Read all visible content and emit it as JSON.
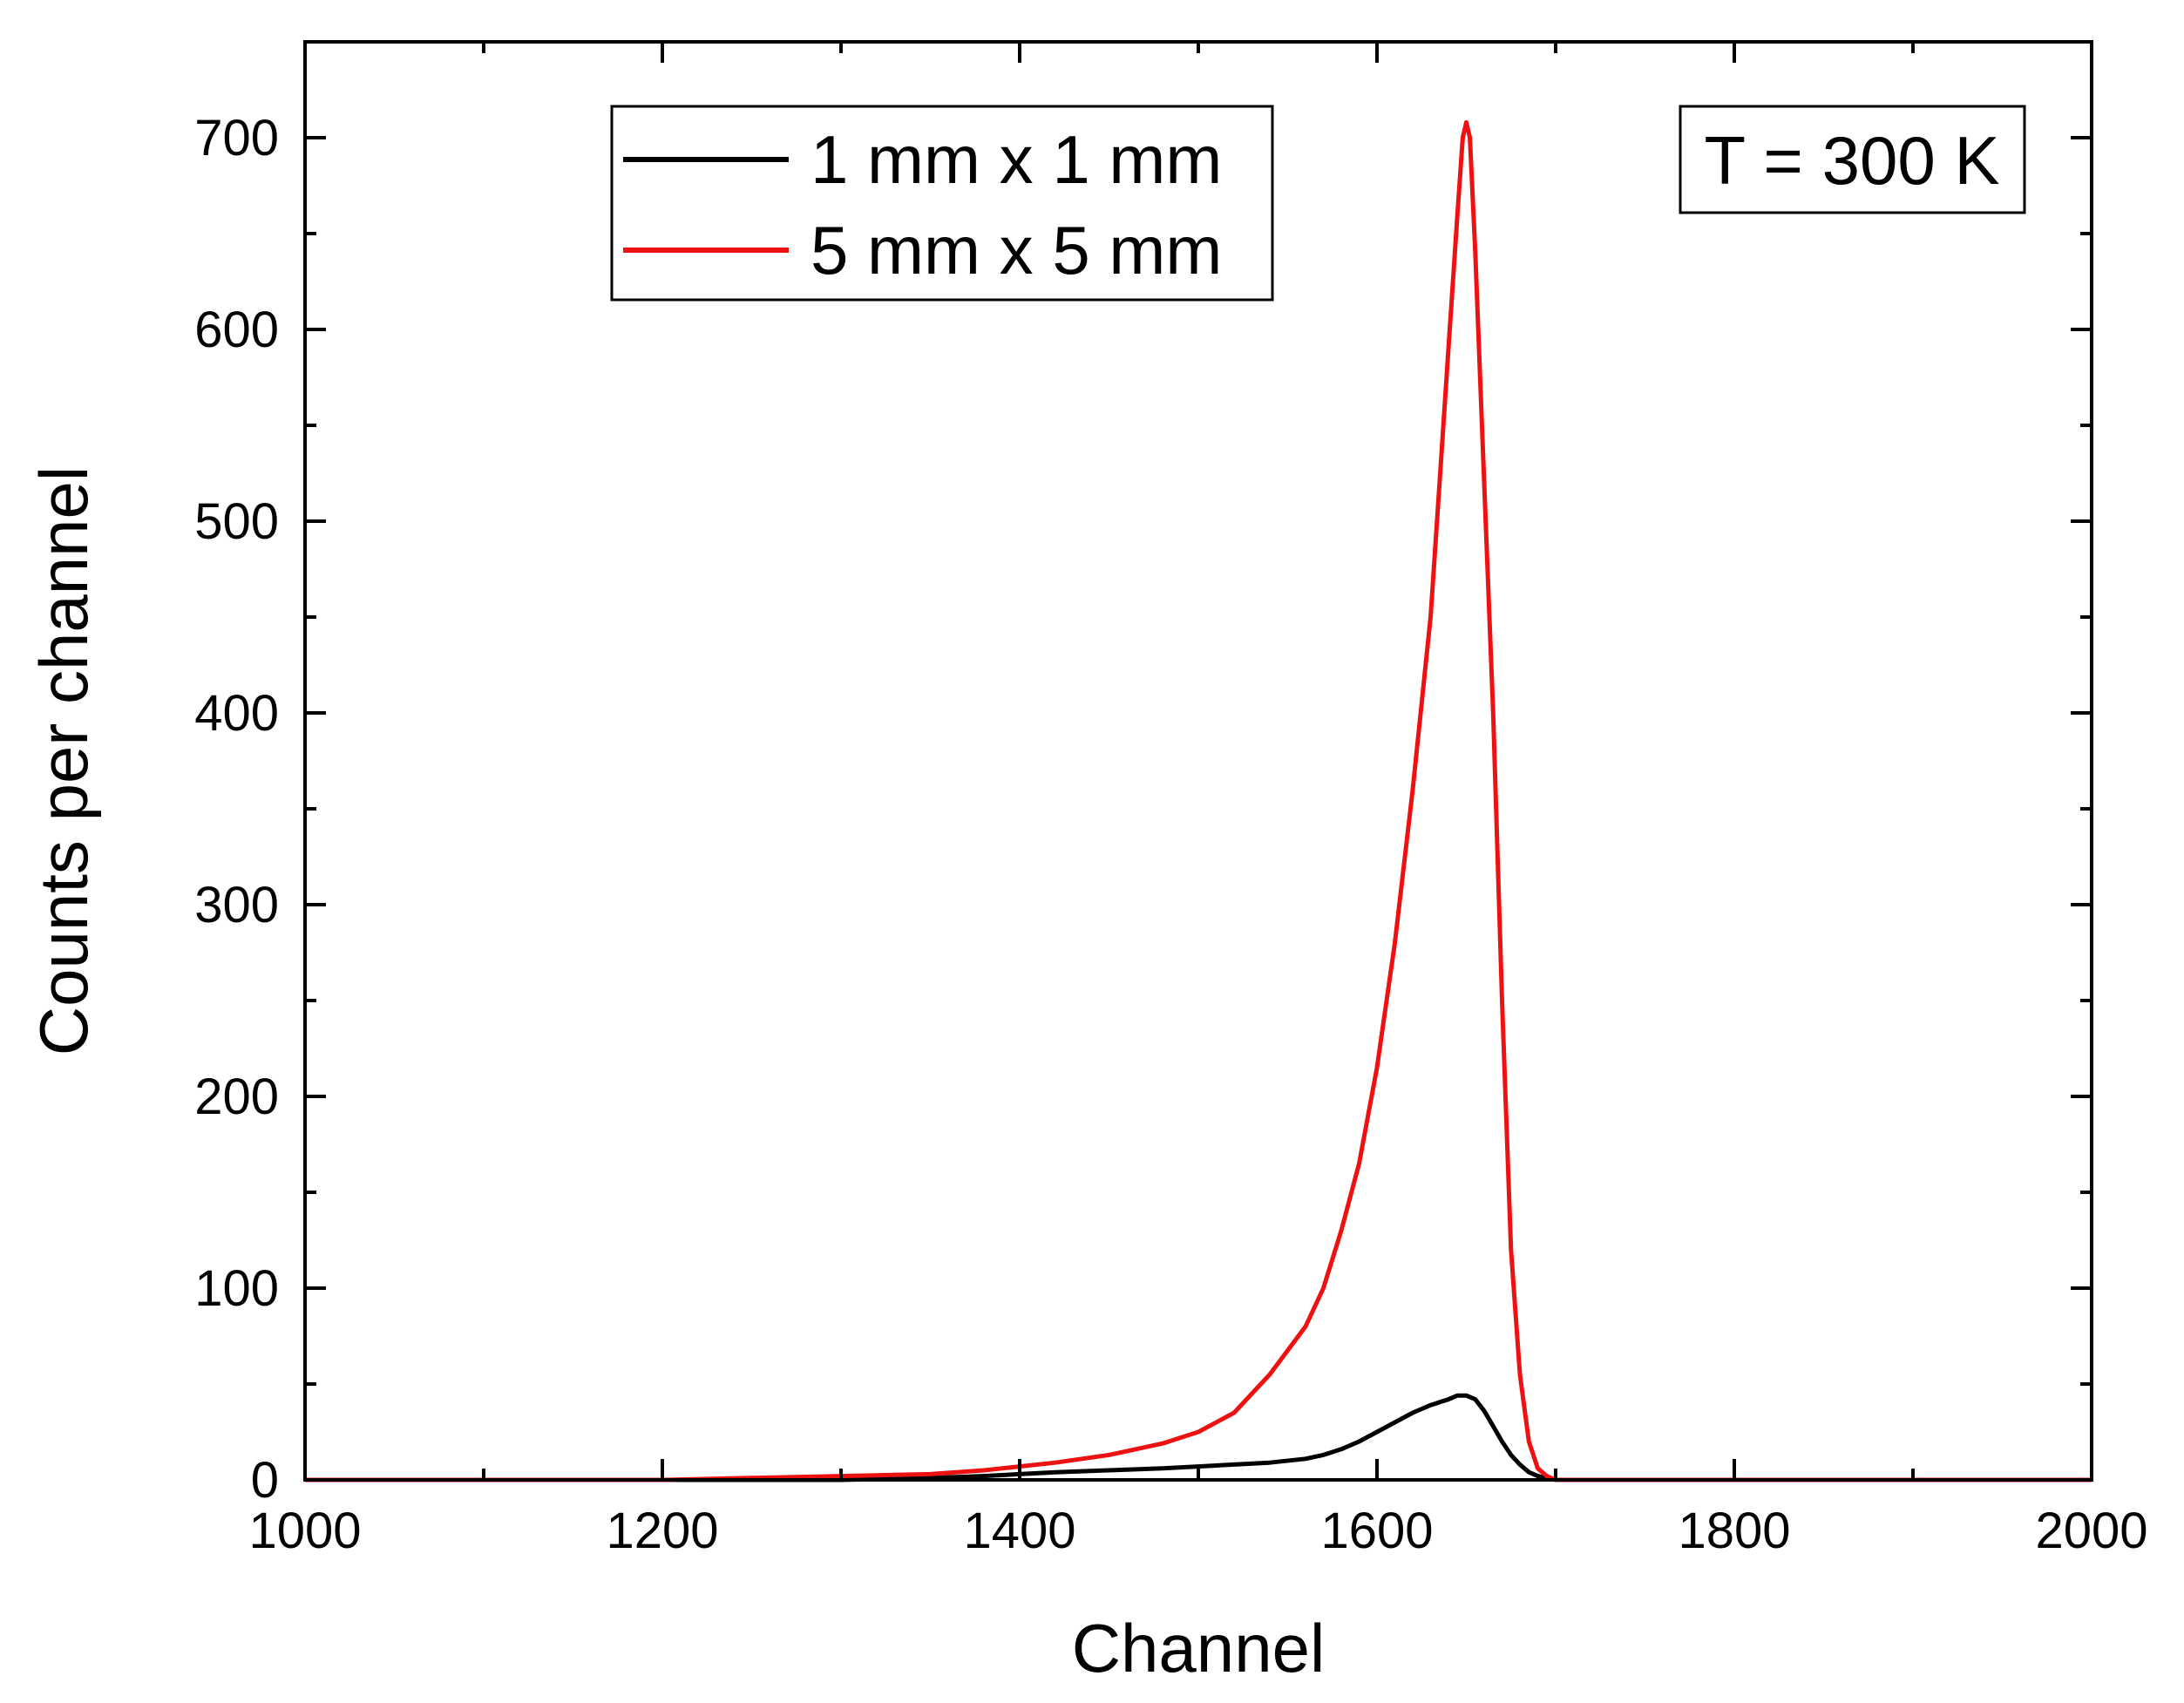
{
  "chart_data": {
    "type": "line",
    "xlabel": "Channel",
    "ylabel": "Counts per channel",
    "xlim": [
      1000,
      2000
    ],
    "ylim": [
      0,
      750
    ],
    "x_ticks": [
      1000,
      1200,
      1400,
      1600,
      1800,
      2000
    ],
    "x_minor_ticks": [
      1100,
      1300,
      1500,
      1700,
      1900
    ],
    "y_ticks": [
      0,
      100,
      200,
      300,
      400,
      500,
      600,
      700
    ],
    "y_minor_ticks": [
      50,
      150,
      250,
      350,
      450,
      550,
      650,
      750
    ],
    "grid": false,
    "legend_position": "top-left",
    "annotation": "T = 300 K",
    "series": [
      {
        "name": "1 mm x 1 mm",
        "color": "#000000",
        "x": [
          1000,
          1100,
          1200,
          1300,
          1350,
          1380,
          1400,
          1420,
          1450,
          1480,
          1500,
          1520,
          1540,
          1560,
          1570,
          1580,
          1590,
          1600,
          1610,
          1620,
          1630,
          1640,
          1645,
          1650,
          1655,
          1660,
          1665,
          1670,
          1675,
          1680,
          1685,
          1690,
          1695,
          1700,
          1720,
          1800,
          1900,
          2000
        ],
        "values": [
          0,
          0,
          0,
          0,
          1,
          2,
          3,
          4,
          5,
          6,
          7,
          8,
          9,
          11,
          13,
          16,
          20,
          25,
          30,
          35,
          39,
          42,
          44,
          44,
          42,
          36,
          28,
          20,
          13,
          8,
          4,
          2,
          1,
          0,
          0,
          0,
          0,
          0
        ]
      },
      {
        "name": "5 mm x 5 mm",
        "color": "#ee1111",
        "x": [
          1000,
          1100,
          1200,
          1250,
          1300,
          1350,
          1380,
          1400,
          1420,
          1450,
          1480,
          1500,
          1520,
          1540,
          1560,
          1570,
          1580,
          1590,
          1600,
          1610,
          1620,
          1630,
          1635,
          1640,
          1645,
          1648,
          1650,
          1652,
          1655,
          1660,
          1665,
          1670,
          1675,
          1680,
          1685,
          1690,
          1695,
          1700,
          1710,
          1800,
          1900,
          2000
        ],
        "values": [
          0,
          0,
          0,
          1,
          2,
          3,
          5,
          7,
          9,
          13,
          19,
          25,
          35,
          55,
          80,
          100,
          130,
          165,
          215,
          280,
          360,
          450,
          520,
          590,
          660,
          700,
          708,
          700,
          640,
          520,
          400,
          250,
          120,
          55,
          20,
          6,
          2,
          0,
          0,
          0,
          0,
          0
        ]
      }
    ]
  }
}
